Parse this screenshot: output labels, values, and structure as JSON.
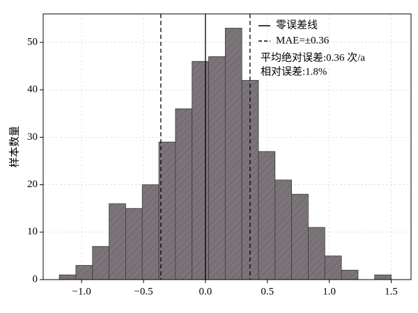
{
  "chart_data": {
    "type": "histogram",
    "ylabel": "样本数量",
    "bins": [
      -1.18,
      -1.046,
      -0.912,
      -0.778,
      -0.644,
      -0.51,
      -0.376,
      -0.242,
      -0.108,
      0.026,
      0.16,
      0.294,
      0.428,
      0.562,
      0.696,
      0.83,
      0.964,
      1.098,
      1.232,
      1.366,
      1.5
    ],
    "values": [
      1,
      3,
      7,
      16,
      15,
      20,
      29,
      36,
      46,
      47,
      53,
      42,
      27,
      21,
      18,
      11,
      5,
      2,
      0,
      1
    ],
    "color": "#7b7479",
    "xlim": [
      -1.31,
      1.66
    ],
    "ylim": [
      0,
      56
    ],
    "xticks": [
      {
        "value": -1,
        "label": "−1.0"
      },
      {
        "value": -0.5,
        "label": "−0.5"
      },
      {
        "value": 0,
        "label": "0.0"
      },
      0.5,
      {
        "value": 1,
        "label": "1.0"
      },
      1.5
    ],
    "yticks": [
      0,
      10,
      20,
      30,
      40,
      50
    ],
    "grid": true,
    "reference_lines": [
      {
        "name": "零误差线",
        "values": [
          0
        ],
        "style": "solid"
      },
      {
        "name": "MAE=±0.36",
        "values": [
          -0.36,
          0.36
        ],
        "style": "dashed"
      }
    ],
    "annotations": [
      "平均绝对误差:0.36 次/a",
      "相对误差:1.8%"
    ]
  }
}
